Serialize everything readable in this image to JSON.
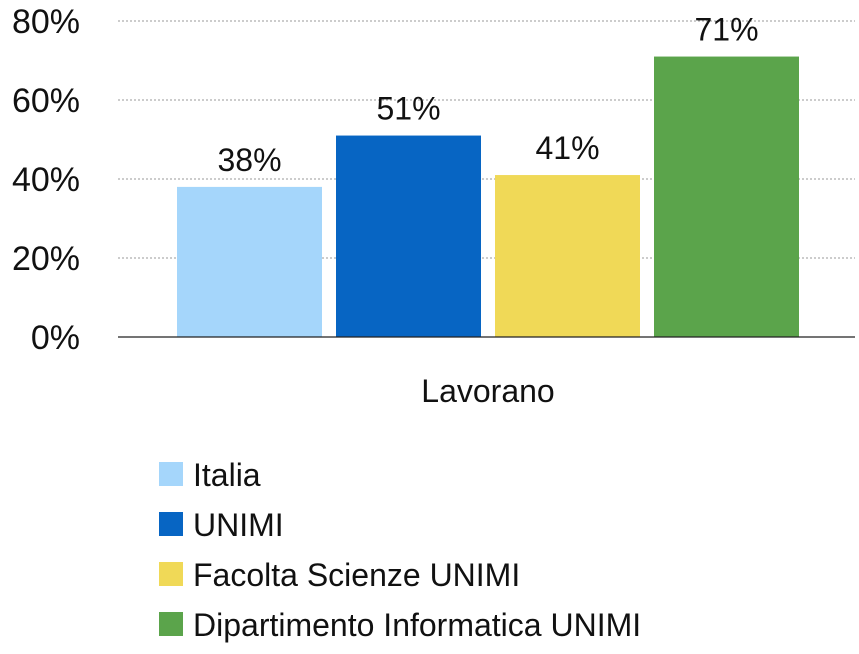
{
  "chart_data": {
    "type": "bar",
    "categories": [
      "Lavorano"
    ],
    "series": [
      {
        "name": "Italia",
        "values": [
          38
        ],
        "label": "38%"
      },
      {
        "name": "UNIMI",
        "values": [
          51
        ],
        "label": "51%"
      },
      {
        "name": "Facolta Scienze UNIMI",
        "values": [
          41
        ],
        "label": "41%"
      },
      {
        "name": "Dipartimento Informatica UNIMI",
        "values": [
          71
        ],
        "label": "71%"
      }
    ],
    "colors": [
      "#a5d6fb",
      "#0765c3",
      "#f0d957",
      "#5ba44b"
    ],
    "yticks": [
      0,
      20,
      40,
      60,
      80
    ],
    "ytick_labels": [
      "0%",
      "20%",
      "40%",
      "60%",
      "80%"
    ],
    "ylim": [
      0,
      80
    ],
    "grid": true,
    "legend_position": "bottom-left"
  }
}
